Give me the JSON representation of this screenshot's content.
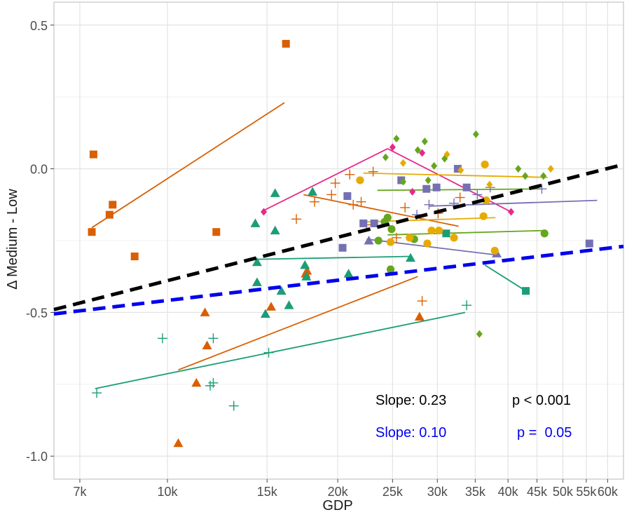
{
  "chart_data": {
    "type": "scatter",
    "x_scale": "log",
    "xlabel": "GDP",
    "ylabel": "Δ Medium - Low",
    "xlim": [
      6300,
      64000
    ],
    "ylim": [
      -1.08,
      0.58
    ],
    "x_ticks": [
      {
        "value": 7000,
        "label": "7k"
      },
      {
        "value": 10000,
        "label": "10k"
      },
      {
        "value": 15000,
        "label": "15k"
      },
      {
        "value": 20000,
        "label": "20k"
      },
      {
        "value": 25000,
        "label": "25k"
      },
      {
        "value": 30000,
        "label": "30k"
      },
      {
        "value": 35000,
        "label": "35k"
      },
      {
        "value": 40000,
        "label": "40k"
      },
      {
        "value": 45000,
        "label": "45k"
      },
      {
        "value": 50000,
        "label": "50k"
      },
      {
        "value": 55000,
        "label": "55k"
      },
      {
        "value": 60000,
        "label": "60k"
      }
    ],
    "y_ticks": [
      {
        "value": 0.5,
        "label": "0.5"
      },
      {
        "value": 0.0,
        "label": "0.0"
      },
      {
        "value": -0.5,
        "label": "-0.5"
      },
      {
        "value": -1.0,
        "label": "-1.0"
      }
    ],
    "grid": true,
    "colors": {
      "orange": "#d95f02",
      "teal": "#1b9e77",
      "purple": "#7570b3",
      "pink": "#e7298a",
      "green": "#66a61e",
      "gold": "#e6ab02",
      "black": "#000000",
      "blue": "#0000ee",
      "grid": "#e3e3e3",
      "panel_border": "#b8b8b8"
    },
    "series": [
      {
        "color": "orange",
        "shape": "square",
        "points": [
          [
            7400,
            0.05
          ],
          [
            7350,
            -0.22
          ],
          [
            7900,
            -0.16
          ],
          [
            8000,
            -0.125
          ],
          [
            8750,
            -0.305
          ],
          [
            12200,
            -0.22
          ],
          [
            16200,
            0.435
          ]
        ]
      },
      {
        "color": "orange",
        "shape": "triangle",
        "points": [
          [
            11650,
            -0.5
          ],
          [
            11750,
            -0.615
          ],
          [
            11250,
            -0.745
          ],
          [
            10450,
            -0.955
          ],
          [
            15250,
            -0.48
          ],
          [
            17550,
            -0.365
          ],
          [
            17650,
            -0.355
          ],
          [
            27900,
            -0.515
          ]
        ]
      },
      {
        "color": "orange",
        "shape": "plus",
        "points": [
          [
            16900,
            -0.175
          ],
          [
            18200,
            -0.115
          ],
          [
            19500,
            -0.09
          ],
          [
            19800,
            -0.05
          ],
          [
            21000,
            -0.02
          ],
          [
            21300,
            -0.125
          ],
          [
            22000,
            -0.115
          ],
          [
            22500,
            -0.195
          ],
          [
            23100,
            -0.01
          ],
          [
            25400,
            -0.24
          ],
          [
            26300,
            -0.135
          ],
          [
            28200,
            -0.46
          ],
          [
            30100,
            -0.155
          ],
          [
            32900,
            -0.1
          ]
        ]
      },
      {
        "color": "teal",
        "shape": "triangle",
        "points": [
          [
            14300,
            -0.19
          ],
          [
            14400,
            -0.325
          ],
          [
            14400,
            -0.395
          ],
          [
            15500,
            -0.085
          ],
          [
            15500,
            -0.215
          ],
          [
            14900,
            -0.505
          ],
          [
            15900,
            -0.425
          ],
          [
            16400,
            -0.475
          ],
          [
            17500,
            -0.335
          ],
          [
            17600,
            -0.375
          ],
          [
            18050,
            -0.08
          ],
          [
            20900,
            -0.365
          ],
          [
            26900,
            -0.31
          ]
        ]
      },
      {
        "color": "teal",
        "shape": "plus",
        "points": [
          [
            7500,
            -0.78
          ],
          [
            9800,
            -0.59
          ],
          [
            11900,
            -0.755
          ],
          [
            12050,
            -0.745
          ],
          [
            12050,
            -0.59
          ],
          [
            13100,
            -0.825
          ],
          [
            15100,
            -0.64
          ],
          [
            33800,
            -0.475
          ]
        ]
      },
      {
        "color": "teal",
        "shape": "square",
        "points": [
          [
            31100,
            -0.225
          ],
          [
            43000,
            -0.425
          ]
        ]
      },
      {
        "color": "purple",
        "shape": "square",
        "points": [
          [
            20400,
            -0.275
          ],
          [
            20800,
            -0.095
          ],
          [
            22200,
            -0.19
          ],
          [
            23200,
            -0.19
          ],
          [
            25900,
            -0.04
          ],
          [
            28700,
            -0.07
          ],
          [
            29900,
            -0.065
          ],
          [
            32600,
            0.0
          ],
          [
            33800,
            -0.065
          ],
          [
            55700,
            -0.26
          ]
        ]
      },
      {
        "color": "purple",
        "shape": "triangle",
        "points": [
          [
            22700,
            -0.25
          ],
          [
            38200,
            -0.295
          ]
        ]
      },
      {
        "color": "purple",
        "shape": "plus",
        "points": [
          [
            29000,
            -0.125
          ],
          [
            27600,
            -0.16
          ],
          [
            32100,
            -0.12
          ],
          [
            35300,
            -0.09
          ],
          [
            37200,
            -0.065
          ],
          [
            45900,
            -0.07
          ]
        ]
      },
      {
        "color": "pink",
        "shape": "diamond",
        "points": [
          [
            14800,
            -0.15
          ],
          [
            25000,
            0.075
          ],
          [
            27100,
            -0.08
          ],
          [
            28200,
            0.055
          ],
          [
            40500,
            -0.15
          ]
        ]
      },
      {
        "color": "green",
        "shape": "diamond",
        "points": [
          [
            24300,
            0.04
          ],
          [
            25400,
            0.105
          ],
          [
            26100,
            -0.045
          ],
          [
            27700,
            0.065
          ],
          [
            28500,
            0.095
          ],
          [
            28900,
            -0.04
          ],
          [
            29600,
            0.01
          ],
          [
            30900,
            0.035
          ],
          [
            35100,
            0.12
          ],
          [
            35600,
            -0.575
          ],
          [
            41700,
            0.0
          ],
          [
            42900,
            -0.025
          ],
          [
            46200,
            -0.025
          ]
        ]
      },
      {
        "color": "green",
        "shape": "circle",
        "points": [
          [
            23600,
            -0.25
          ],
          [
            24200,
            -0.185
          ],
          [
            24500,
            -0.17
          ],
          [
            24800,
            -0.35
          ],
          [
            24900,
            -0.21
          ],
          [
            27300,
            -0.245
          ],
          [
            46400,
            -0.225
          ]
        ]
      },
      {
        "color": "gold",
        "shape": "circle",
        "points": [
          [
            21900,
            -0.04
          ],
          [
            24800,
            -0.255
          ],
          [
            26800,
            -0.24
          ],
          [
            28800,
            -0.26
          ],
          [
            29300,
            -0.215
          ],
          [
            30200,
            -0.215
          ],
          [
            32100,
            -0.24
          ],
          [
            36400,
            0.015
          ],
          [
            36200,
            -0.165
          ],
          [
            36600,
            -0.11
          ],
          [
            37900,
            -0.285
          ]
        ]
      },
      {
        "color": "gold",
        "shape": "diamond",
        "points": [
          [
            26100,
            0.02
          ],
          [
            31200,
            0.05
          ],
          [
            33000,
            -0.005
          ],
          [
            37100,
            -0.055
          ],
          [
            47600,
            0.0
          ]
        ]
      }
    ],
    "group_fit_lines": [
      {
        "color": "orange",
        "from": [
          7350,
          -0.205
        ],
        "to": [
          16100,
          0.23
        ]
      },
      {
        "color": "orange",
        "from": [
          10450,
          -0.7
        ],
        "to": [
          27700,
          -0.375
        ]
      },
      {
        "color": "orange",
        "from": [
          17400,
          -0.09
        ],
        "to": [
          32700,
          -0.2
        ]
      },
      {
        "color": "teal",
        "from": [
          7450,
          -0.765
        ],
        "to": [
          33600,
          -0.5
        ]
      },
      {
        "color": "teal",
        "from": [
          14400,
          -0.315
        ],
        "to": [
          26800,
          -0.305
        ]
      },
      {
        "color": "teal",
        "from": [
          36400,
          -0.335
        ],
        "to": [
          43000,
          -0.425
        ]
      },
      {
        "color": "pink",
        "from": [
          14800,
          -0.145
        ],
        "to": [
          24500,
          0.07
        ]
      },
      {
        "color": "pink",
        "from": [
          24500,
          0.07
        ],
        "to": [
          40500,
          -0.15
        ]
      },
      {
        "color": "gold",
        "from": [
          22200,
          -0.015
        ],
        "to": [
          47000,
          -0.03
        ]
      },
      {
        "color": "gold",
        "from": [
          22300,
          -0.185
        ],
        "to": [
          38000,
          -0.17
        ]
      },
      {
        "color": "green",
        "from": [
          23500,
          -0.075
        ],
        "to": [
          46000,
          -0.07
        ]
      },
      {
        "color": "green",
        "from": [
          24500,
          -0.23
        ],
        "to": [
          46300,
          -0.215
        ]
      },
      {
        "color": "purple",
        "from": [
          29000,
          -0.13
        ],
        "to": [
          57500,
          -0.11
        ]
      },
      {
        "color": "purple",
        "from": [
          22500,
          -0.245
        ],
        "to": [
          38200,
          -0.3
        ]
      }
    ],
    "overall_fits": [
      {
        "color": "black",
        "dash": "long",
        "from": [
          6300,
          -0.49
        ],
        "to": [
          64000,
          0.015
        ]
      },
      {
        "color": "blue",
        "dash": "long",
        "from": [
          6300,
          -0.505
        ],
        "to": [
          64000,
          -0.27
        ]
      }
    ],
    "annotations": {
      "slope_overall": "Slope: 0.23",
      "p_overall": "p < 0.001",
      "slope_weighted": "Slope: 0.10",
      "p_weighted": "p =  0.05"
    }
  }
}
